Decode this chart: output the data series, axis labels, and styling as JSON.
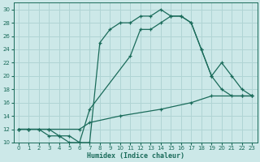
{
  "xlabel": "Humidex (Indice chaleur)",
  "background_color": "#cce8e8",
  "grid_color": "#b0d4d4",
  "line_color": "#1a6b5a",
  "xlim": [
    -0.5,
    23.5
  ],
  "ylim": [
    10,
    31
  ],
  "xticks": [
    0,
    1,
    2,
    3,
    4,
    5,
    6,
    7,
    8,
    9,
    10,
    11,
    12,
    13,
    14,
    15,
    16,
    17,
    18,
    19,
    20,
    21,
    22,
    23
  ],
  "yticks": [
    10,
    12,
    14,
    16,
    18,
    20,
    22,
    24,
    26,
    28,
    30
  ],
  "line1_x": [
    0,
    1,
    2,
    3,
    4,
    5,
    6,
    7,
    11,
    12,
    13,
    14,
    15,
    16,
    17,
    18,
    19,
    20,
    21,
    22,
    23
  ],
  "line1_y": [
    12,
    12,
    12,
    11,
    11,
    10,
    10,
    15,
    23,
    27,
    27,
    28,
    29,
    29,
    28,
    24,
    20,
    22,
    20,
    18,
    17
  ],
  "line2_x": [
    0,
    1,
    2,
    3,
    4,
    5,
    6,
    7,
    8,
    9,
    10,
    11,
    12,
    13,
    14,
    15,
    16,
    17,
    18,
    19,
    20,
    21,
    22,
    23
  ],
  "line2_y": [
    12,
    12,
    12,
    12,
    11,
    11,
    10,
    10,
    25,
    27,
    28,
    28,
    29,
    29,
    30,
    29,
    29,
    28,
    24,
    20,
    18,
    17,
    17,
    17
  ],
  "line3_x": [
    0,
    1,
    3,
    6,
    7,
    10,
    14,
    17,
    19,
    22,
    23
  ],
  "line3_y": [
    12,
    12,
    12,
    12,
    13,
    14,
    15,
    16,
    17,
    17,
    17
  ]
}
